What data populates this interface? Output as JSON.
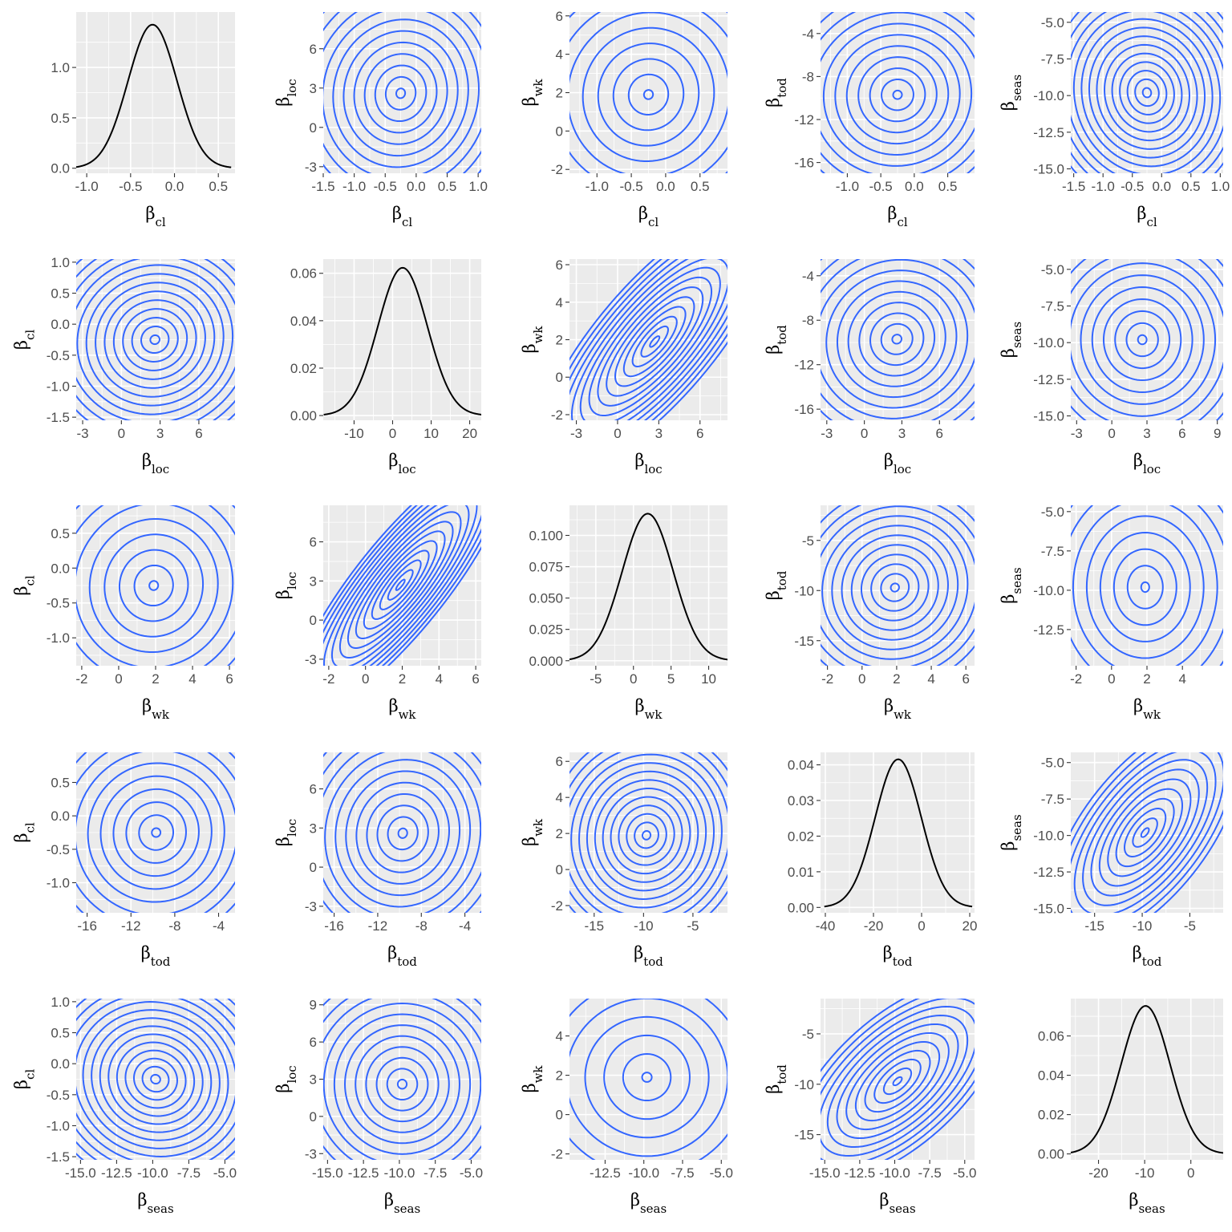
{
  "figure": {
    "layout": "5x5 pairs plot",
    "panel_background": "#ebebeb",
    "grid_color": "#ffffff",
    "contour_color": "#3366ff",
    "density_color": "#000000",
    "axis_text_color": "#4d4d4d",
    "grid": true,
    "legend": "none"
  },
  "chart_data": [
    {
      "type": "line",
      "row": 0,
      "col": 0,
      "x_var": "cl",
      "y_var": "density",
      "xlabel": "β_cl",
      "ylabel": "",
      "mean": -0.25,
      "sd": 0.28,
      "xlim": [
        -1.12,
        0.69
      ],
      "ylim": [
        -0.05,
        1.55
      ],
      "x_ticks": [
        -1.0,
        -0.5,
        0.0,
        0.5
      ],
      "x_tick_labels": [
        "-1.0",
        "-0.5",
        "0.0",
        "0.5"
      ],
      "y_ticks": [
        0.0,
        0.5,
        1.0
      ],
      "y_tick_labels": [
        "0.0",
        "0.5",
        "1.0"
      ]
    },
    {
      "type": "contour",
      "row": 0,
      "col": 1,
      "x_var": "cl",
      "y_var": "loc",
      "xlabel": "β_cl",
      "ylabel": "β_loc",
      "center": [
        -0.25,
        2.6
      ],
      "sx": 0.6,
      "sy": 3.1,
      "rho": 0.05,
      "levels": 11,
      "xlim": [
        -1.5,
        1.05
      ],
      "ylim": [
        -3.5,
        8.8
      ],
      "x_ticks": [
        -1.5,
        -1.0,
        -0.5,
        0.0,
        0.5,
        1.0
      ],
      "x_tick_labels": [
        "-1.5",
        "-1.0",
        "-0.5",
        "0.0",
        "0.5",
        "1.0"
      ],
      "y_ticks": [
        -3,
        0,
        3,
        6
      ],
      "y_tick_labels": [
        "-3",
        "0",
        "3",
        "6"
      ]
    },
    {
      "type": "contour",
      "row": 0,
      "col": 2,
      "x_var": "cl",
      "y_var": "wk",
      "xlabel": "β_cl",
      "ylabel": "β_wk",
      "center": [
        -0.25,
        1.9
      ],
      "sx": 0.55,
      "sy": 2.0,
      "rho": 0.03,
      "levels": 8,
      "xlim": [
        -1.4,
        0.9
      ],
      "ylim": [
        -2.2,
        6.2
      ],
      "x_ticks": [
        -1.0,
        -0.5,
        0.0,
        0.5
      ],
      "x_tick_labels": [
        "-1.0",
        "-0.5",
        "0.0",
        "0.5"
      ],
      "y_ticks": [
        -2,
        0,
        2,
        4,
        6
      ],
      "y_tick_labels": [
        "-2",
        "0",
        "2",
        "4",
        "6"
      ]
    },
    {
      "type": "contour",
      "row": 0,
      "col": 3,
      "x_var": "cl",
      "y_var": "tod",
      "xlabel": "β_cl",
      "ylabel": "β_tod",
      "center": [
        -0.25,
        -9.7
      ],
      "sx": 0.55,
      "sy": 3.3,
      "rho": 0.02,
      "levels": 10,
      "xlim": [
        -1.4,
        0.9
      ],
      "ylim": [
        -17,
        -2
      ],
      "x_ticks": [
        -1.0,
        -0.5,
        0.0,
        0.5
      ],
      "x_tick_labels": [
        "-1.0",
        "-0.5",
        "0.0",
        "0.5"
      ],
      "y_ticks": [
        -16,
        -12,
        -8,
        -4
      ],
      "y_tick_labels": [
        "-16",
        "-12",
        "-8",
        "-4"
      ]
    },
    {
      "type": "contour",
      "row": 0,
      "col": 4,
      "x_var": "cl",
      "y_var": "seas",
      "xlabel": "β_cl",
      "ylabel": "β_seas",
      "center": [
        -0.25,
        -9.8
      ],
      "sx": 0.6,
      "sy": 2.7,
      "rho": -0.06,
      "levels": 14,
      "xlim": [
        -1.55,
        1.05
      ],
      "ylim": [
        -15.3,
        -4.3
      ],
      "x_ticks": [
        -1.5,
        -1.0,
        -0.5,
        0.0,
        0.5,
        1.0
      ],
      "x_tick_labels": [
        "-1.5",
        "-1.0",
        "-0.5",
        "0.0",
        "0.5",
        "1.0"
      ],
      "y_ticks": [
        -15.0,
        -12.5,
        -10.0,
        -7.5,
        -5.0
      ],
      "y_tick_labels": [
        "-15.0",
        "-12.5",
        "-10.0",
        "-7.5",
        "-5.0"
      ]
    },
    {
      "type": "contour",
      "row": 1,
      "col": 0,
      "x_var": "loc",
      "y_var": "cl",
      "xlabel": "β_loc",
      "ylabel": "β_cl",
      "center": [
        2.6,
        -0.25
      ],
      "sx": 3.0,
      "sy": 0.6,
      "rho": 0.05,
      "levels": 13,
      "xlim": [
        -3.5,
        8.8
      ],
      "ylim": [
        -1.55,
        1.05
      ],
      "x_ticks": [
        -3,
        0,
        3,
        6
      ],
      "x_tick_labels": [
        "-3",
        "0",
        "3",
        "6"
      ],
      "y_ticks": [
        -1.5,
        -1.0,
        -0.5,
        0.0,
        0.5,
        1.0
      ],
      "y_tick_labels": [
        "-1.5",
        "-1.0",
        "-0.5",
        "0.0",
        "0.5",
        "1.0"
      ]
    },
    {
      "type": "line",
      "row": 1,
      "col": 1,
      "x_var": "loc",
      "y_var": "density",
      "xlabel": "β_loc",
      "ylabel": "",
      "mean": 2.6,
      "sd": 6.4,
      "xlim": [
        -18,
        23
      ],
      "ylim": [
        -0.002,
        0.066
      ],
      "x_ticks": [
        -10,
        0,
        10,
        20
      ],
      "x_tick_labels": [
        "-10",
        "0",
        "10",
        "20"
      ],
      "y_ticks": [
        0.0,
        0.02,
        0.04,
        0.06
      ],
      "y_tick_labels": [
        "0.00",
        "0.02",
        "0.04",
        "0.06"
      ]
    },
    {
      "type": "contour",
      "row": 1,
      "col": 2,
      "x_var": "loc",
      "y_var": "wk",
      "xlabel": "β_loc",
      "ylabel": "β_wk",
      "center": [
        2.7,
        1.9
      ],
      "sx": 2.9,
      "sy": 2.4,
      "rho": 0.78,
      "levels": 14,
      "xlim": [
        -3.5,
        8.0
      ],
      "ylim": [
        -2.3,
        6.3
      ],
      "x_ticks": [
        -3,
        0,
        3,
        6
      ],
      "x_tick_labels": [
        "-3",
        "0",
        "3",
        "6"
      ],
      "y_ticks": [
        -2,
        0,
        2,
        4,
        6
      ],
      "y_tick_labels": [
        "-2",
        "0",
        "2",
        "4",
        "6"
      ]
    },
    {
      "type": "contour",
      "row": 1,
      "col": 3,
      "x_var": "loc",
      "y_var": "tod",
      "xlabel": "β_loc",
      "ylabel": "β_tod",
      "center": [
        2.6,
        -9.7
      ],
      "sx": 3.1,
      "sy": 3.4,
      "rho": 0.05,
      "levels": 11,
      "xlim": [
        -3.5,
        8.8
      ],
      "ylim": [
        -17,
        -2.5
      ],
      "x_ticks": [
        -3,
        0,
        3,
        6
      ],
      "x_tick_labels": [
        "-3",
        "0",
        "3",
        "6"
      ],
      "y_ticks": [
        -16,
        -12,
        -8,
        -4
      ],
      "y_tick_labels": [
        "-16",
        "-12",
        "-8",
        "-4"
      ]
    },
    {
      "type": "contour",
      "row": 1,
      "col": 4,
      "x_var": "loc",
      "y_var": "seas",
      "xlabel": "β_loc",
      "ylabel": "β_seas",
      "center": [
        2.6,
        -9.8
      ],
      "sx": 3.1,
      "sy": 2.6,
      "rho": 0.0,
      "levels": 10,
      "xlim": [
        -3.5,
        9.5
      ],
      "ylim": [
        -15.3,
        -4.3
      ],
      "x_ticks": [
        -3,
        0,
        3,
        6,
        9
      ],
      "x_tick_labels": [
        "-3",
        "0",
        "3",
        "6",
        "9"
      ],
      "y_ticks": [
        -15.0,
        -12.5,
        -10.0,
        -7.5,
        -5.0
      ],
      "y_tick_labels": [
        "-15.0",
        "-12.5",
        "-10.0",
        "-7.5",
        "-5.0"
      ]
    },
    {
      "type": "contour",
      "row": 2,
      "col": 0,
      "x_var": "wk",
      "y_var": "cl",
      "xlabel": "β_wk",
      "ylabel": "β_cl",
      "center": [
        1.9,
        -0.25
      ],
      "sx": 2.0,
      "sy": 0.55,
      "rho": 0.03,
      "levels": 8,
      "xlim": [
        -2.3,
        6.3
      ],
      "ylim": [
        -1.4,
        0.9
      ],
      "x_ticks": [
        -2,
        0,
        2,
        4,
        6
      ],
      "x_tick_labels": [
        "-2",
        "0",
        "2",
        "4",
        "6"
      ],
      "y_ticks": [
        -1.0,
        -0.5,
        0.0,
        0.5
      ],
      "y_tick_labels": [
        "-1.0",
        "-0.5",
        "0.0",
        "0.5"
      ]
    },
    {
      "type": "contour",
      "row": 2,
      "col": 1,
      "x_var": "wk",
      "y_var": "loc",
      "xlabel": "β_wk",
      "ylabel": "β_loc",
      "center": [
        1.9,
        2.7
      ],
      "sx": 2.0,
      "sy": 3.4,
      "rho": 0.85,
      "levels": 14,
      "xlim": [
        -2.3,
        6.3
      ],
      "ylim": [
        -3.5,
        8.8
      ],
      "x_ticks": [
        -2,
        0,
        2,
        4,
        6
      ],
      "x_tick_labels": [
        "-2",
        "0",
        "2",
        "4",
        "6"
      ],
      "y_ticks": [
        -3,
        0,
        3,
        6
      ],
      "y_tick_labels": [
        "-3",
        "0",
        "3",
        "6"
      ]
    },
    {
      "type": "line",
      "row": 2,
      "col": 2,
      "x_var": "wk",
      "y_var": "density",
      "xlabel": "β_wk",
      "ylabel": "",
      "mean": 1.9,
      "sd": 3.4,
      "xlim": [
        -8.5,
        12.5
      ],
      "ylim": [
        -0.004,
        0.124
      ],
      "x_ticks": [
        -5,
        0,
        5,
        10
      ],
      "x_tick_labels": [
        "-5",
        "0",
        "5",
        "10"
      ],
      "y_ticks": [
        0.0,
        0.025,
        0.05,
        0.075,
        0.1
      ],
      "y_tick_labels": [
        "0.000",
        "0.025",
        "0.050",
        "0.075",
        "0.100"
      ]
    },
    {
      "type": "contour",
      "row": 2,
      "col": 3,
      "x_var": "wk",
      "y_var": "tod",
      "xlabel": "β_wk",
      "ylabel": "β_tod",
      "center": [
        1.9,
        -9.7
      ],
      "sx": 2.0,
      "sy": 3.4,
      "rho": 0.05,
      "levels": 11,
      "xlim": [
        -2.4,
        6.5
      ],
      "ylim": [
        -17.5,
        -1.5
      ],
      "x_ticks": [
        -2,
        0,
        2,
        4,
        6
      ],
      "x_tick_labels": [
        "-2",
        "0",
        "2",
        "4",
        "6"
      ],
      "y_ticks": [
        -15,
        -10,
        -5
      ],
      "y_tick_labels": [
        "-15",
        "-10",
        "-5"
      ]
    },
    {
      "type": "contour",
      "row": 2,
      "col": 4,
      "x_var": "wk",
      "y_var": "seas",
      "xlabel": "β_wk",
      "ylabel": "β_seas",
      "center": [
        1.9,
        -9.8
      ],
      "sx": 1.9,
      "sy": 2.6,
      "rho": 0.0,
      "levels": 8,
      "xlim": [
        -2.3,
        6.3
      ],
      "ylim": [
        -14.8,
        -4.6
      ],
      "x_ticks": [
        -2,
        0,
        2,
        4
      ],
      "x_tick_labels": [
        "-2",
        "0",
        "2",
        "4"
      ],
      "y_ticks": [
        -12.5,
        -10.0,
        -7.5,
        -5.0
      ],
      "y_tick_labels": [
        "-12.5",
        "-10.0",
        "-7.5",
        "-5.0"
      ]
    },
    {
      "type": "contour",
      "row": 3,
      "col": 0,
      "x_var": "tod",
      "y_var": "cl",
      "xlabel": "β_tod",
      "ylabel": "β_cl",
      "center": [
        -9.7,
        -0.25
      ],
      "sx": 3.3,
      "sy": 0.55,
      "rho": 0.02,
      "levels": 9,
      "xlim": [
        -17,
        -2.5
      ],
      "ylim": [
        -1.45,
        0.95
      ],
      "x_ticks": [
        -16,
        -12,
        -8,
        -4
      ],
      "x_tick_labels": [
        "-16",
        "-12",
        "-8",
        "-4"
      ],
      "y_ticks": [
        -1.0,
        -0.5,
        0.0,
        0.5
      ],
      "y_tick_labels": [
        "-1.0",
        "-0.5",
        "0.0",
        "0.5"
      ]
    },
    {
      "type": "contour",
      "row": 3,
      "col": 1,
      "x_var": "tod",
      "y_var": "loc",
      "xlabel": "β_tod",
      "ylabel": "β_loc",
      "center": [
        -9.7,
        2.6
      ],
      "sx": 3.4,
      "sy": 3.1,
      "rho": 0.05,
      "levels": 11,
      "xlim": [
        -17,
        -2.5
      ],
      "ylim": [
        -3.5,
        8.8
      ],
      "x_ticks": [
        -16,
        -12,
        -8,
        -4
      ],
      "x_tick_labels": [
        "-16",
        "-12",
        "-8",
        "-4"
      ],
      "y_ticks": [
        -3,
        0,
        3,
        6
      ],
      "y_tick_labels": [
        "-3",
        "0",
        "3",
        "6"
      ]
    },
    {
      "type": "contour",
      "row": 3,
      "col": 2,
      "x_var": "tod",
      "y_var": "wk",
      "xlabel": "β_tod",
      "ylabel": "β_wk",
      "center": [
        -9.7,
        1.9
      ],
      "sx": 3.4,
      "sy": 2.0,
      "rho": 0.05,
      "levels": 13,
      "xlim": [
        -17.5,
        -1.5
      ],
      "ylim": [
        -2.4,
        6.5
      ],
      "x_ticks": [
        -15,
        -10,
        -5
      ],
      "x_tick_labels": [
        "-15",
        "-10",
        "-5"
      ],
      "y_ticks": [
        -2,
        0,
        2,
        4,
        6
      ],
      "y_tick_labels": [
        "-2",
        "0",
        "2",
        "4",
        "6"
      ]
    },
    {
      "type": "line",
      "row": 3,
      "col": 3,
      "x_var": "tod",
      "y_var": "density",
      "xlabel": "β_tod",
      "ylabel": "",
      "mean": -9.7,
      "sd": 9.6,
      "xlim": [
        -42,
        22
      ],
      "ylim": [
        -0.0015,
        0.0435
      ],
      "x_ticks": [
        -40,
        -20,
        0,
        20
      ],
      "x_tick_labels": [
        "-40",
        "-20",
        "0",
        "20"
      ],
      "y_ticks": [
        0.0,
        0.01,
        0.02,
        0.03,
        0.04
      ],
      "y_tick_labels": [
        "0.00",
        "0.01",
        "0.02",
        "0.03",
        "0.04"
      ]
    },
    {
      "type": "contour",
      "row": 3,
      "col": 4,
      "x_var": "tod",
      "y_var": "seas",
      "xlabel": "β_tod",
      "ylabel": "β_seas",
      "center": [
        -9.7,
        -9.8
      ],
      "sx": 3.4,
      "sy": 2.6,
      "rho": 0.62,
      "levels": 12,
      "xlim": [
        -17.5,
        -1.5
      ],
      "ylim": [
        -15.3,
        -4.3
      ],
      "x_ticks": [
        -15,
        -10,
        -5
      ],
      "x_tick_labels": [
        "-15",
        "-10",
        "-5"
      ],
      "y_ticks": [
        -15.0,
        -12.5,
        -10.0,
        -7.5,
        -5.0
      ],
      "y_tick_labels": [
        "-15.0",
        "-12.5",
        "-10.0",
        "-7.5",
        "-5.0"
      ]
    },
    {
      "type": "contour",
      "row": 4,
      "col": 0,
      "x_var": "seas",
      "y_var": "cl",
      "xlabel": "β_seas",
      "ylabel": "β_cl",
      "center": [
        -9.8,
        -0.25
      ],
      "sx": 2.7,
      "sy": 0.6,
      "rho": -0.06,
      "levels": 14,
      "xlim": [
        -15.3,
        -4.3
      ],
      "ylim": [
        -1.55,
        1.05
      ],
      "x_ticks": [
        -15.0,
        -12.5,
        -10.0,
        -7.5,
        -5.0
      ],
      "x_tick_labels": [
        "-15.0",
        "-12.5",
        "-10.0",
        "-7.5",
        "-5.0"
      ],
      "y_ticks": [
        -1.5,
        -1.0,
        -0.5,
        0.0,
        0.5,
        1.0
      ],
      "y_tick_labels": [
        "-1.5",
        "-1.0",
        "-0.5",
        "0.0",
        "0.5",
        "1.0"
      ]
    },
    {
      "type": "contour",
      "row": 4,
      "col": 1,
      "x_var": "seas",
      "y_var": "loc",
      "xlabel": "β_seas",
      "ylabel": "β_loc",
      "center": [
        -9.8,
        2.6
      ],
      "sx": 2.6,
      "sy": 3.1,
      "rho": 0.0,
      "levels": 11,
      "xlim": [
        -15.3,
        -4.3
      ],
      "ylim": [
        -3.5,
        9.5
      ],
      "x_ticks": [
        -15.0,
        -12.5,
        -10.0,
        -7.5,
        -5.0
      ],
      "x_tick_labels": [
        "-15.0",
        "-12.5",
        "-10.0",
        "-7.5",
        "-5.0"
      ],
      "y_ticks": [
        -3,
        0,
        3,
        6,
        9
      ],
      "y_tick_labels": [
        "-3",
        "0",
        "3",
        "6",
        "9"
      ]
    },
    {
      "type": "contour",
      "row": 4,
      "col": 2,
      "x_var": "seas",
      "y_var": "wk",
      "xlabel": "β_seas",
      "ylabel": "β_wk",
      "center": [
        -9.8,
        1.9
      ],
      "sx": 2.6,
      "sy": 2.0,
      "rho": 0.0,
      "levels": 7,
      "xlim": [
        -14.8,
        -4.6
      ],
      "ylim": [
        -2.3,
        5.9
      ],
      "x_ticks": [
        -12.5,
        -10.0,
        -7.5,
        -5.0
      ],
      "x_tick_labels": [
        "-12.5",
        "-10.0",
        "-7.5",
        "-5.0"
      ],
      "y_ticks": [
        -2,
        0,
        2,
        4
      ],
      "y_tick_labels": [
        "-2",
        "0",
        "2",
        "4"
      ]
    },
    {
      "type": "contour",
      "row": 4,
      "col": 3,
      "x_var": "seas",
      "y_var": "tod",
      "xlabel": "β_seas",
      "ylabel": "β_tod",
      "center": [
        -9.8,
        -9.7
      ],
      "sx": 2.6,
      "sy": 3.4,
      "rho": 0.62,
      "levels": 12,
      "xlim": [
        -15.3,
        -4.3
      ],
      "ylim": [
        -17.5,
        -1.5
      ],
      "x_ticks": [
        -15.0,
        -12.5,
        -10.0,
        -7.5,
        -5.0
      ],
      "x_tick_labels": [
        "-15.0",
        "-12.5",
        "-10.0",
        "-7.5",
        "-5.0"
      ],
      "y_ticks": [
        -15,
        -10,
        -5
      ],
      "y_tick_labels": [
        "-15",
        "-10",
        "-5"
      ]
    },
    {
      "type": "line",
      "row": 4,
      "col": 4,
      "x_var": "seas",
      "y_var": "density",
      "xlabel": "β_seas",
      "ylabel": "",
      "mean": -9.8,
      "sd": 5.3,
      "xlim": [
        -26,
        7
      ],
      "ylim": [
        -0.003,
        0.079
      ],
      "x_ticks": [
        -20,
        -10,
        0
      ],
      "x_tick_labels": [
        "-20",
        "-10",
        "0"
      ],
      "y_ticks": [
        0.0,
        0.02,
        0.04,
        0.06
      ],
      "y_tick_labels": [
        "0.00",
        "0.02",
        "0.04",
        "0.06"
      ]
    }
  ]
}
